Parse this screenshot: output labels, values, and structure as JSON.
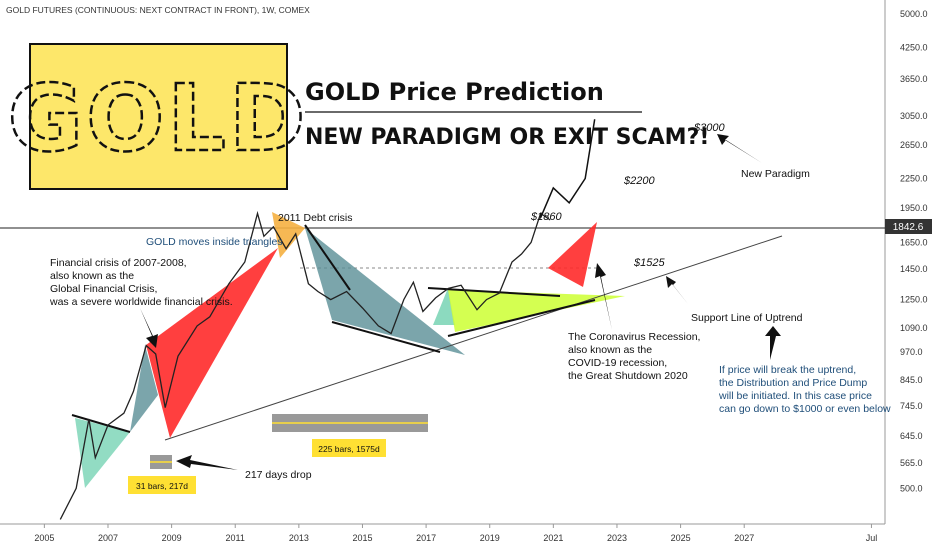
{
  "symbol_title": "GOLD FUTURES (CONTINUOUS: NEXT CONTRACT IN FRONT), 1W, COMEX",
  "logo_text": "GOLD",
  "headline": "GOLD Price Prediction",
  "subheadline": "NEW PARADIGM OR EXIT SCAM?!",
  "current_price_label": "1842.6",
  "annotations": {
    "debt_crisis": "2011 Debt crisis",
    "triangles": "GOLD moves inside triangles",
    "fin_crisis": [
      "Financial crisis of 2007-2008,",
      "also known as the",
      "Global Financial Crisis,",
      "was a severe worldwide financial crisis."
    ],
    "corona": [
      "The Coronavirus Recession,",
      "also known as the",
      "COVID-19 recession,",
      "the Great Shutdown 2020"
    ],
    "p1860": "$1860",
    "p1525": "$1525",
    "p2200": "$2200",
    "p3000": "$3000",
    "new_paradigm": "New Paradigm",
    "support": "Support Line of Uptrend",
    "breakdown": [
      "If price will break the uptrend,",
      "the Distribution and Price Dump",
      "will be initiated. In this case price",
      "can go down to $1000 or even below"
    ],
    "days_drop": "217 days drop",
    "range1": "31 bars, 217d",
    "range2": "225 bars, 1575d"
  },
  "colors": {
    "red": "#ff2a2a",
    "teal": "#5a8f96",
    "mint": "#7fd6b8",
    "yellow_green": "#ccff33",
    "orange": "#f5b041",
    "logo_bg": "#fde76a",
    "note_blue": "#1f4e79"
  },
  "chart_data": {
    "type": "line",
    "title": "GOLD FUTURES (CONTINUOUS: NEXT CONTRACT IN FRONT), 1W, COMEX",
    "y_scale": "log",
    "ylim": [
      450,
      5100
    ],
    "xlim": [
      2004.8,
      2031.3
    ],
    "x_ticks": [
      "2005",
      "2007",
      "2009",
      "2011",
      "2013",
      "2015",
      "2017",
      "2019",
      "2021",
      "2023",
      "2025",
      "2027",
      "Jul"
    ],
    "y_ticks": [
      "5000.0",
      "4250.0",
      "3650.0",
      "3050.0",
      "2650.0",
      "2250.0",
      "1950.0",
      "1650.0",
      "1450.0",
      "1250.0",
      "1090.0",
      "970.0",
      "845.0",
      "745.0",
      "645.0",
      "565.0",
      "500.0"
    ],
    "series": [
      {
        "name": "",
        "x": [
          2005.5,
          2006.0,
          2006.4,
          2006.6,
          2007.0,
          2007.5,
          2007.8,
          2008.2,
          2008.5,
          2008.8,
          2009.2,
          2009.8,
          2010.2,
          2010.8,
          2011.3,
          2011.7,
          2011.9,
          2012.2,
          2012.6,
          2012.9,
          2013.3,
          2013.6,
          2014.0,
          2014.5,
          2015.0,
          2015.5,
          2015.9,
          2016.3,
          2016.6,
          2016.9,
          2017.3,
          2017.7,
          2018.1,
          2018.6,
          2018.9,
          2019.3,
          2019.7,
          2020.0,
          2020.3,
          2020.6,
          2020.9
        ],
        "y": [
          430,
          500,
          700,
          580,
          680,
          720,
          800,
          1000,
          960,
          740,
          950,
          1100,
          1150,
          1350,
          1500,
          1900,
          1700,
          1780,
          1600,
          1720,
          1350,
          1300,
          1250,
          1300,
          1200,
          1100,
          1060,
          1250,
          1360,
          1180,
          1260,
          1320,
          1340,
          1190,
          1250,
          1290,
          1500,
          1560,
          1650,
          1900,
          1840
        ]
      }
    ],
    "levels": [
      {
        "label": "$1860",
        "y": 1860
      },
      {
        "label": "$1525",
        "y": 1525
      }
    ],
    "projection": {
      "x": [
        2020.6,
        2021.0,
        2021.5,
        2022.0,
        2022.3
      ],
      "y": [
        1860,
        2150,
        2000,
        2250,
        3000
      ]
    }
  }
}
